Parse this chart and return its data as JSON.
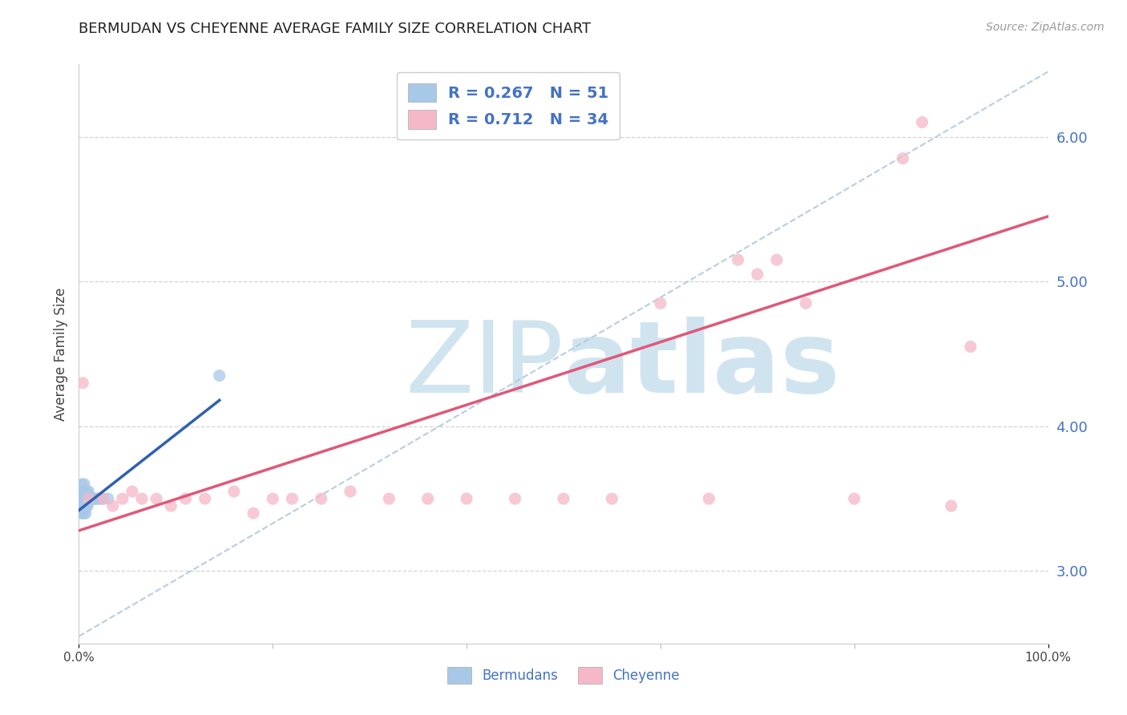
{
  "title": "BERMUDAN VS CHEYENNE AVERAGE FAMILY SIZE CORRELATION CHART",
  "source_text": "Source: ZipAtlas.com",
  "ylabel": "Average Family Size",
  "xlim": [
    0.0,
    100.0
  ],
  "ylim": [
    2.5,
    6.5
  ],
  "yticks": [
    3.0,
    4.0,
    5.0,
    6.0
  ],
  "xtick_positions": [
    0.0,
    100.0
  ],
  "xtick_labels": [
    "0.0%",
    "100.0%"
  ],
  "xtick_minor": [
    20.0,
    40.0,
    60.0,
    80.0
  ],
  "legend_labels": [
    "Bermudans",
    "Cheyenne"
  ],
  "legend_r": [
    "0.267",
    "0.712"
  ],
  "legend_n": [
    "51",
    "34"
  ],
  "blue_scatter_color": "#a8c8e8",
  "pink_scatter_color": "#f5b8c8",
  "blue_line_color": "#3060b0",
  "pink_line_color": "#e05878",
  "dashed_line_color": "#b0c8e0",
  "background_color": "#ffffff",
  "watermark_color": "#d0e4f0",
  "grid_color": "#d0d0d0",
  "ytick_color": "#4472c4",
  "xtick_color": "#444444",
  "legend_text_color": "#4472c4",
  "bermudans_x": [
    0.1,
    0.15,
    0.15,
    0.2,
    0.2,
    0.2,
    0.25,
    0.25,
    0.3,
    0.3,
    0.35,
    0.35,
    0.4,
    0.4,
    0.4,
    0.45,
    0.45,
    0.5,
    0.5,
    0.5,
    0.5,
    0.55,
    0.55,
    0.6,
    0.6,
    0.65,
    0.65,
    0.7,
    0.7,
    0.75,
    0.75,
    0.8,
    0.8,
    0.85,
    0.9,
    0.9,
    0.95,
    1.0,
    1.0,
    1.1,
    1.2,
    1.3,
    1.4,
    1.5,
    1.6,
    1.8,
    2.0,
    2.2,
    2.5,
    3.0,
    14.5
  ],
  "bermudans_y": [
    3.5,
    3.45,
    3.55,
    3.5,
    3.55,
    3.45,
    3.5,
    3.4,
    3.5,
    3.6,
    3.5,
    3.45,
    3.5,
    3.55,
    3.4,
    3.5,
    3.45,
    3.5,
    3.55,
    3.45,
    3.4,
    3.5,
    3.6,
    3.5,
    3.45,
    3.5,
    3.55,
    3.5,
    3.4,
    3.5,
    3.45,
    3.5,
    3.55,
    3.5,
    3.5,
    3.45,
    3.5,
    3.5,
    3.55,
    3.5,
    3.5,
    3.5,
    3.5,
    3.5,
    3.5,
    3.5,
    3.5,
    3.5,
    3.5,
    3.5,
    4.35
  ],
  "cheyenne_x": [
    0.4,
    1.0,
    2.5,
    3.5,
    4.5,
    5.5,
    6.5,
    8.0,
    9.5,
    11.0,
    13.0,
    16.0,
    18.0,
    20.0,
    22.0,
    25.0,
    28.0,
    32.0,
    36.0,
    40.0,
    45.0,
    50.0,
    55.0,
    60.0,
    65.0,
    68.0,
    70.0,
    72.0,
    75.0,
    80.0,
    85.0,
    87.0,
    90.0,
    92.0
  ],
  "cheyenne_y": [
    4.3,
    3.5,
    3.5,
    3.45,
    3.5,
    3.55,
    3.5,
    3.5,
    3.45,
    3.5,
    3.5,
    3.55,
    3.4,
    3.5,
    3.5,
    3.5,
    3.55,
    3.5,
    3.5,
    3.5,
    3.5,
    3.5,
    3.5,
    4.85,
    3.5,
    5.15,
    5.05,
    5.15,
    4.85,
    3.5,
    5.85,
    6.1,
    3.45,
    4.55
  ],
  "blue_reg_x0": 0.0,
  "blue_reg_x1": 14.5,
  "blue_reg_y0": 3.42,
  "blue_reg_y1": 4.18,
  "pink_reg_x0": 0.0,
  "pink_reg_x1": 100.0,
  "pink_reg_y0": 3.28,
  "pink_reg_y1": 5.45,
  "diag_x0": 0.0,
  "diag_x1": 100.0,
  "diag_y0": 2.55,
  "diag_y1": 6.45
}
